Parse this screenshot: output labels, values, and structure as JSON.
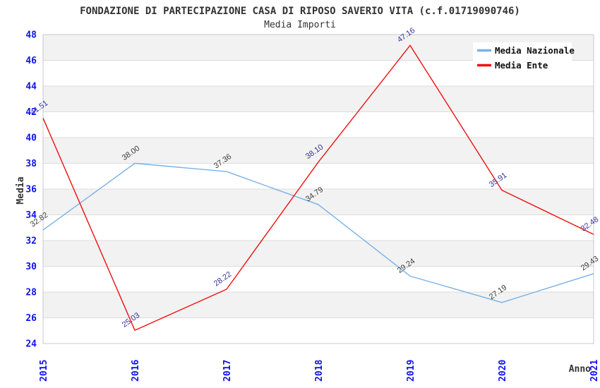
{
  "header": {
    "title": "FONDAZIONE DI PARTECIPAZIONE CASA DI RIPOSO SAVERIO VITA (c.f.01719090746)",
    "subtitle": "Media Importi"
  },
  "chart_data": {
    "type": "line",
    "x": [
      "2015",
      "2016",
      "2017",
      "2018",
      "2019",
      "2020",
      "2021"
    ],
    "series": [
      {
        "name": "Media Nazionale",
        "color": "#79b1e6",
        "label_color": "#3c3c3c",
        "values": [
          32.82,
          38.0,
          37.36,
          34.79,
          29.24,
          27.19,
          29.43
        ]
      },
      {
        "name": "Media Ente",
        "color": "#ee1111",
        "label_color": "#333399",
        "values": [
          41.51,
          25.03,
          28.22,
          38.1,
          47.16,
          35.91,
          32.48
        ]
      }
    ],
    "xlabel": "Anno",
    "ylabel": "Media",
    "ylim": [
      24,
      48
    ],
    "ytick_step": 2,
    "legend_position": "top-right",
    "grid": "horizontal-bands",
    "style_colors": {
      "tick_label": "#1111ee",
      "band_fill": "#f2f2f2",
      "grid_line": "#dcdcdc",
      "plot_border": "#c8c8c8",
      "title_text": "#333333",
      "legend_background": "#ffffff"
    }
  }
}
